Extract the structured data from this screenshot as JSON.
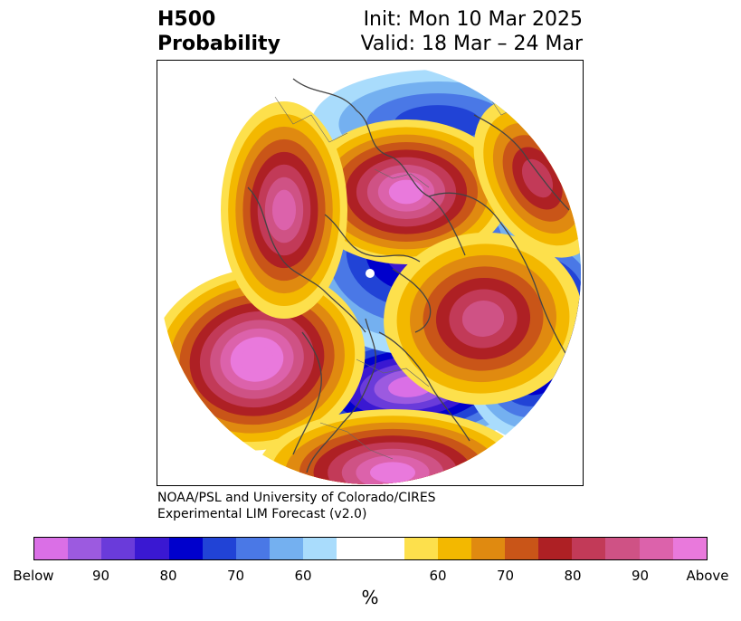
{
  "title": {
    "left_line1": "H500",
    "left_line2": "Probability",
    "right_line1": "Init: Mon 10 Mar 2025",
    "right_line2": "Valid: 18 Mar – 24 Mar"
  },
  "credit": {
    "line1": "NOAA/PSL and University of Colorado/CIRES",
    "line2": "Experimental LIM Forecast (v2.0)"
  },
  "colorbar": {
    "unit": "%",
    "colors": [
      "#da6fe6",
      "#9c5ae0",
      "#6a3bda",
      "#3a18d2",
      "#0000cc",
      "#2143d6",
      "#4a78e6",
      "#74b0f0",
      "#a9dcfc",
      "#ffffff",
      "#ffffff",
      "#fde04c",
      "#f3b800",
      "#e08a10",
      "#c95518",
      "#ae2024",
      "#c23a58",
      "#cf5285",
      "#dc62ab",
      "#e979dc"
    ],
    "ticks": [
      {
        "label": "Below",
        "index": 0
      },
      {
        "label": "90",
        "index": 2
      },
      {
        "label": "80",
        "index": 4
      },
      {
        "label": "70",
        "index": 6
      },
      {
        "label": "60",
        "index": 8
      },
      {
        "label": "60",
        "index": 12
      },
      {
        "label": "70",
        "index": 14
      },
      {
        "label": "80",
        "index": 16
      },
      {
        "label": "90",
        "index": 18
      },
      {
        "label": "Above",
        "index": 20
      }
    ]
  },
  "anomalies": [
    {
      "name": "high-pacific",
      "sign": "above",
      "level": 10
    },
    {
      "name": "high-europe",
      "sign": "above",
      "level": 9
    },
    {
      "name": "high-russia",
      "sign": "above",
      "level": 8
    },
    {
      "name": "high-eastern-us",
      "sign": "above",
      "level": 9
    },
    {
      "name": "high-greenland",
      "sign": "above",
      "level": 7
    },
    {
      "name": "high-west-africa",
      "sign": "above",
      "level": 6
    },
    {
      "name": "low-canada",
      "sign": "below",
      "level": 9
    },
    {
      "name": "low-siberia",
      "sign": "below",
      "level": 9
    },
    {
      "name": "low-arctic",
      "sign": "below",
      "level": 6
    },
    {
      "name": "low-south-atlantic",
      "sign": "below",
      "level": 4
    }
  ]
}
